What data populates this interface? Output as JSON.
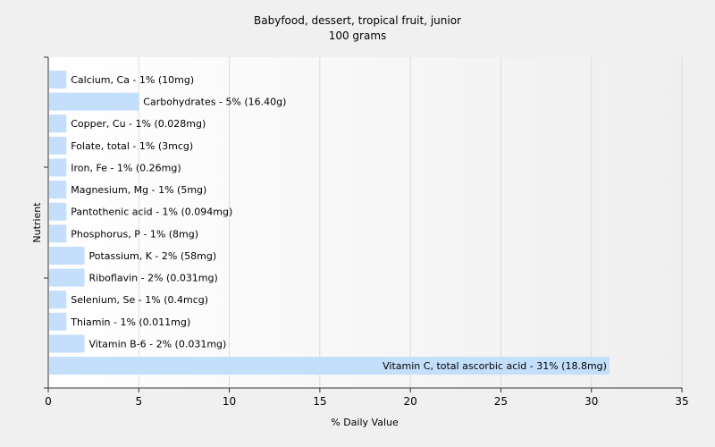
{
  "chart_data": {
    "type": "bar",
    "orientation": "horizontal",
    "title": "Babyfood, dessert, tropical fruit, junior",
    "subtitle": "100 grams",
    "xlabel": "% Daily Value",
    "ylabel": "Nutrient",
    "xlim": [
      0,
      35
    ],
    "xticks": [
      0,
      5,
      10,
      15,
      20,
      25,
      30,
      35
    ],
    "grid": "vertical",
    "bar_color": "#c4dffb",
    "categories": [
      "Calcium, Ca",
      "Carbohydrates",
      "Copper, Cu",
      "Folate, total",
      "Iron, Fe",
      "Magnesium, Mg",
      "Pantothenic acid",
      "Phosphorus, P",
      "Potassium, K",
      "Riboflavin",
      "Selenium, Se",
      "Thiamin",
      "Vitamin B-6",
      "Vitamin C, total ascorbic acid"
    ],
    "values": [
      1,
      5,
      1,
      1,
      1,
      1,
      1,
      1,
      2,
      2,
      1,
      1,
      2,
      31
    ],
    "labels": [
      "Calcium, Ca - 1% (10mg)",
      "Carbohydrates - 5% (16.40g)",
      "Copper, Cu - 1% (0.028mg)",
      "Folate, total - 1% (3mcg)",
      "Iron, Fe - 1% (0.26mg)",
      "Magnesium, Mg - 1% (5mg)",
      "Pantothenic acid - 1% (0.094mg)",
      "Phosphorus, P - 1% (8mg)",
      "Potassium, K - 2% (58mg)",
      "Riboflavin - 2% (0.031mg)",
      "Selenium, Se - 1% (0.4mcg)",
      "Thiamin - 1% (0.011mg)",
      "Vitamin B-6 - 2% (0.031mg)",
      "Vitamin C, total ascorbic acid - 31% (18.8mg)"
    ]
  }
}
